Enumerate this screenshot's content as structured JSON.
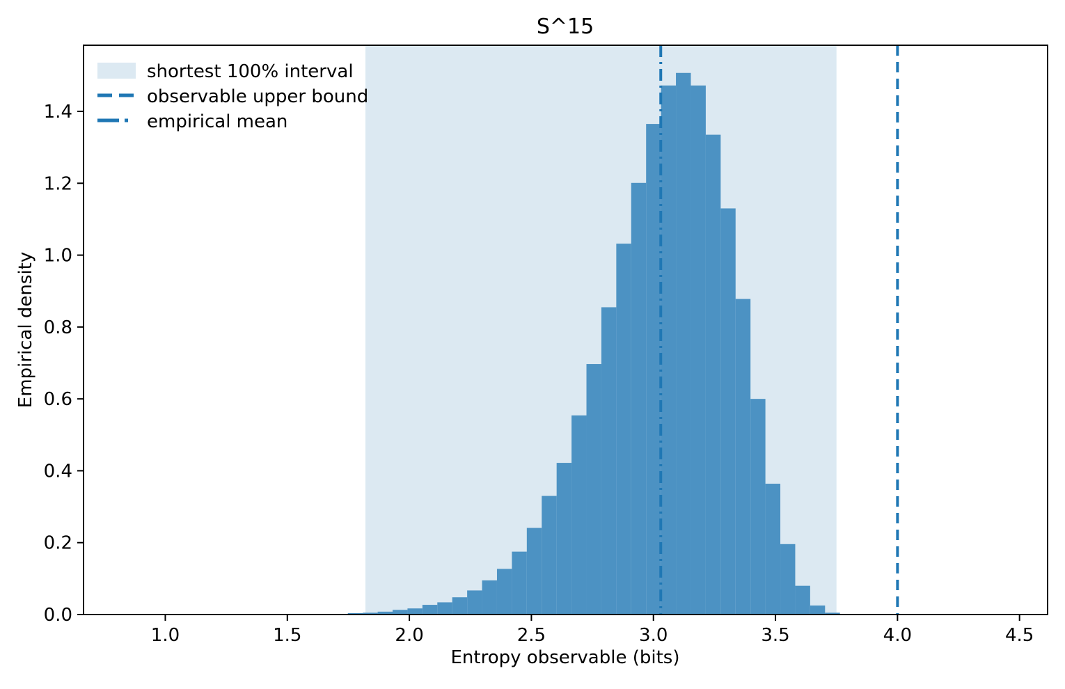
{
  "figure": {
    "title": "S^15",
    "xlabel": "Entropy observable (bits)",
    "ylabel": "Empirical density"
  },
  "chart_data": {
    "type": "bar",
    "subtype": "histogram-density",
    "title": "S^15",
    "xlabel": "Entropy observable (bits)",
    "ylabel": "Empirical density",
    "bin_start": 1.748,
    "bin_width": 0.0611,
    "densities": [
      0.004,
      0.005,
      0.008,
      0.013,
      0.017,
      0.027,
      0.034,
      0.048,
      0.067,
      0.095,
      0.127,
      0.175,
      0.241,
      0.33,
      0.422,
      0.554,
      0.697,
      0.855,
      1.032,
      1.201,
      1.365,
      1.472,
      1.507,
      1.472,
      1.335,
      1.13,
      0.878,
      0.6,
      0.364,
      0.196,
      0.08,
      0.025,
      0.005
    ],
    "xlim": [
      0.665,
      4.615
    ],
    "ylim": [
      0,
      1.584
    ],
    "xticks": [
      1.0,
      1.5,
      2.0,
      2.5,
      3.0,
      3.5,
      4.0,
      4.5
    ],
    "yticks": [
      0.0,
      0.2,
      0.4,
      0.6,
      0.8,
      1.0,
      1.2,
      1.4
    ],
    "grid": false,
    "legend": {
      "position": "upper left",
      "entries": [
        {
          "label": "shortest 100% interval",
          "marker": "patch"
        },
        {
          "label": "observable upper bound",
          "marker": "dashed-line"
        },
        {
          "label": "empirical mean",
          "marker": "dashdot-line"
        }
      ]
    },
    "annotations": {
      "shaded_interval": {
        "label": "shortest 100% interval",
        "x_start": 1.82,
        "x_end": 3.75
      },
      "upper_bound_vline": {
        "label": "observable upper bound",
        "x": 4.0,
        "style": "dashed"
      },
      "mean_vline": {
        "label": "empirical mean",
        "x": 3.03,
        "style": "dashdot"
      }
    },
    "colors": {
      "bar": "#4c92c3",
      "shade": "#dce9f2",
      "line": "#1f77b4",
      "axis": "#000000"
    }
  }
}
